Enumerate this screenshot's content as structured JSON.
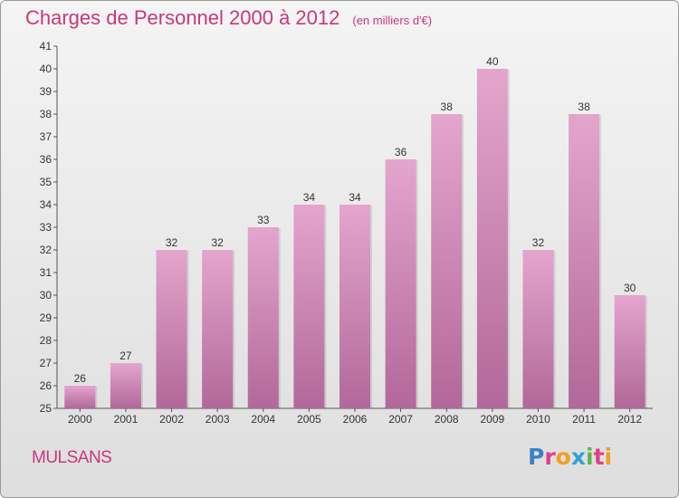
{
  "header": {
    "title": "Charges de Personnel 2000 à 2012",
    "subtitle": "(en milliers d'€)"
  },
  "footer": {
    "commune": "MULSANS",
    "logo_text": "Proxiti"
  },
  "colors": {
    "bar_top": "#e4a5cd",
    "bar_bottom": "#b2689a",
    "title": "#c7387d",
    "logo": [
      "#3b82c4",
      "#e0408a",
      "#f0a020",
      "#2ea3d8",
      "#5bb848",
      "#e0408a",
      "#f0a020"
    ]
  },
  "chart_data": {
    "type": "bar",
    "title": "Charges de Personnel 2000 à 2012",
    "subtitle": "(en milliers d'€)",
    "xlabel": "",
    "ylabel": "",
    "categories": [
      "2000",
      "2001",
      "2002",
      "2003",
      "2004",
      "2005",
      "2006",
      "2007",
      "2008",
      "2009",
      "2010",
      "2011",
      "2012"
    ],
    "values": [
      26,
      27,
      32,
      32,
      33,
      34,
      34,
      36,
      38,
      40,
      32,
      38,
      30
    ],
    "ylim": [
      25,
      41
    ],
    "yticks": [
      25,
      26,
      27,
      28,
      29,
      30,
      31,
      32,
      33,
      34,
      35,
      36,
      37,
      38,
      39,
      40,
      41
    ],
    "grid": false,
    "data_labels": true
  }
}
